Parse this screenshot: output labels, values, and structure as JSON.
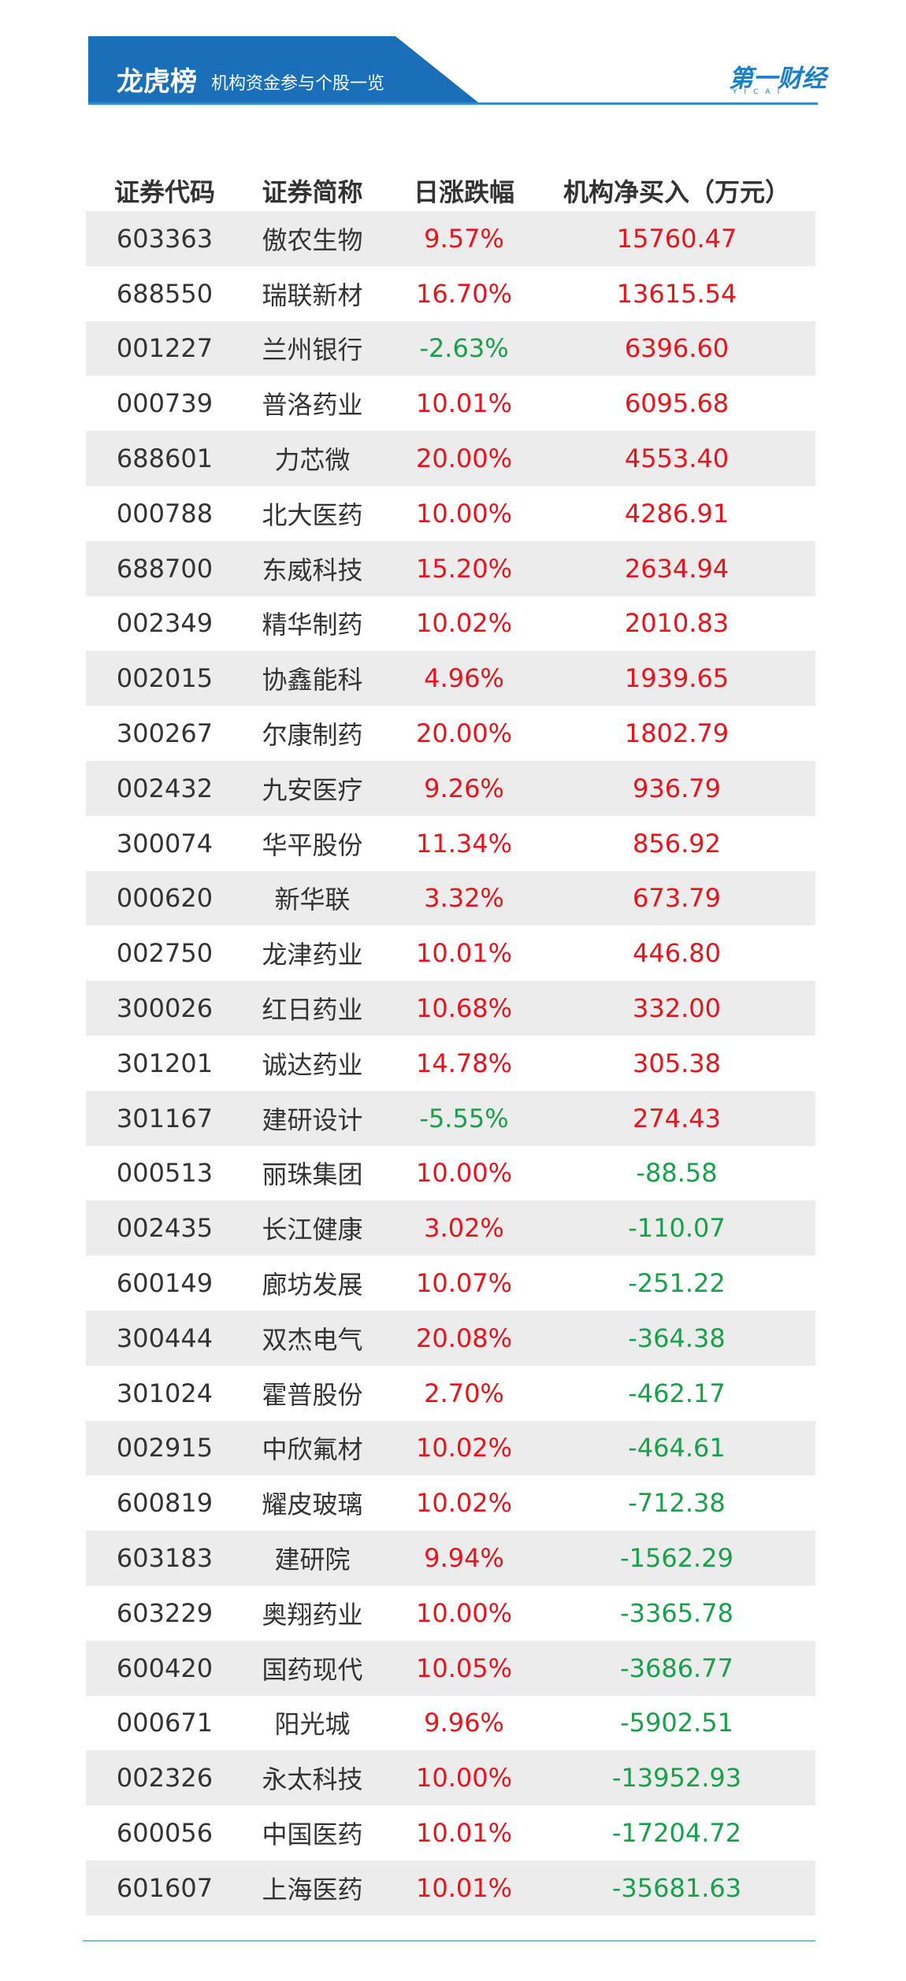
{
  "header": {
    "title": "龙虎榜",
    "subtitle": "机构资金参与个股一览",
    "logo": "第一财经",
    "logo_sub": "YICAI"
  },
  "table": {
    "columns": [
      "证券代码",
      "证券简称",
      "日涨跌幅",
      "机构净买入（万元）"
    ],
    "rows": [
      [
        "603363",
        "傲农生物",
        "9.57%",
        "15760.47"
      ],
      [
        "688550",
        "瑞联新材",
        "16.70%",
        "13615.54"
      ],
      [
        "001227",
        "兰州银行",
        "-2.63%",
        "6396.60"
      ],
      [
        "000739",
        "普洛药业",
        "10.01%",
        "6095.68"
      ],
      [
        "688601",
        "力芯微",
        "20.00%",
        "4553.40"
      ],
      [
        "000788",
        "北大医药",
        "10.00%",
        "4286.91"
      ],
      [
        "688700",
        "东威科技",
        "15.20%",
        "2634.94"
      ],
      [
        "002349",
        "精华制药",
        "10.02%",
        "2010.83"
      ],
      [
        "002015",
        "协鑫能科",
        "4.96%",
        "1939.65"
      ],
      [
        "300267",
        "尔康制药",
        "20.00%",
        "1802.79"
      ],
      [
        "002432",
        "九安医疗",
        "9.26%",
        "936.79"
      ],
      [
        "300074",
        "华平股份",
        "11.34%",
        "856.92"
      ],
      [
        "000620",
        "新华联",
        "3.32%",
        "673.79"
      ],
      [
        "002750",
        "龙津药业",
        "10.01%",
        "446.80"
      ],
      [
        "300026",
        "红日药业",
        "10.68%",
        "332.00"
      ],
      [
        "301201",
        "诚达药业",
        "14.78%",
        "305.38"
      ],
      [
        "301167",
        "建研设计",
        "-5.55%",
        "274.43"
      ],
      [
        "000513",
        "丽珠集团",
        "10.00%",
        "-88.58"
      ],
      [
        "002435",
        "长江健康",
        "3.02%",
        "-110.07"
      ],
      [
        "600149",
        "廊坊发展",
        "10.07%",
        "-251.22"
      ],
      [
        "300444",
        "双杰电气",
        "20.08%",
        "-364.38"
      ],
      [
        "301024",
        "霍普股份",
        "2.70%",
        "-462.17"
      ],
      [
        "002915",
        "中欣氟材",
        "10.02%",
        "-464.61"
      ],
      [
        "600819",
        "耀皮玻璃",
        "10.02%",
        "-712.38"
      ],
      [
        "603183",
        "建研院",
        "9.94%",
        "-1562.29"
      ],
      [
        "603229",
        "奥翔药业",
        "10.00%",
        "-3365.78"
      ],
      [
        "600420",
        "国药现代",
        "10.05%",
        "-3686.77"
      ],
      [
        "000671",
        "阳光城",
        "9.96%",
        "-5902.51"
      ],
      [
        "002326",
        "永太科技",
        "10.00%",
        "-13952.93"
      ],
      [
        "600056",
        "中国医药",
        "10.01%",
        "-17204.72"
      ],
      [
        "601607",
        "上海医药",
        "10.01%",
        "-35681.63"
      ]
    ]
  }
}
